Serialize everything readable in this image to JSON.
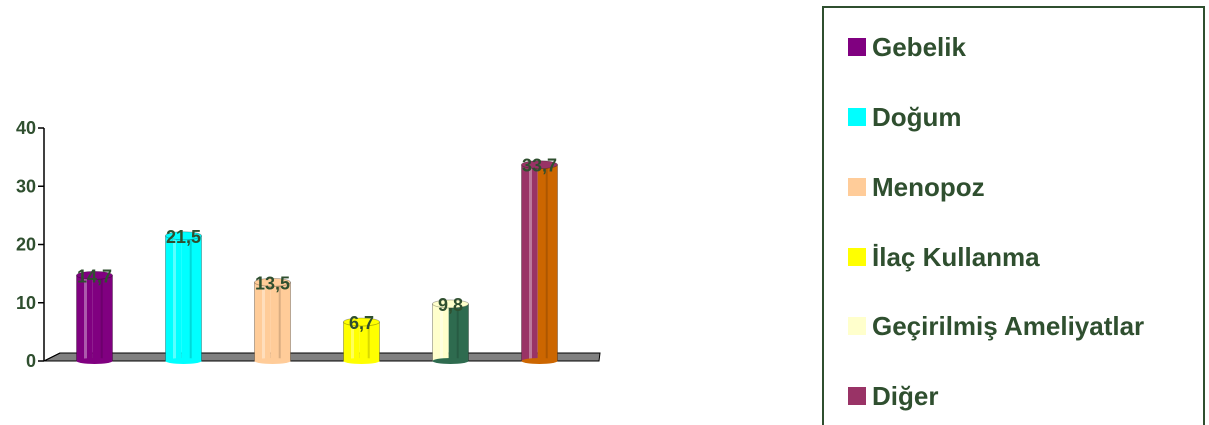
{
  "chart_data": {
    "type": "bar",
    "categories": [
      "Gebelik",
      "Doğum",
      "Menopoz",
      "İlaç Kullanma",
      "Geçirilmiş Ameliyatlar",
      "Diğer"
    ],
    "values": [
      14.7,
      21.5,
      13.5,
      6.7,
      9.8,
      33.7
    ],
    "data_labels": [
      "14,7",
      "21,5",
      "13,5",
      "6,7",
      "9,8",
      "33,7"
    ],
    "colors": [
      "#800080",
      "#00ffff",
      "#ffcc99",
      "#ffff00",
      "#ffffcc",
      "#993366"
    ],
    "side_colors": [
      "#800080",
      "#00ffff",
      "#ffcc99",
      "#ffff00",
      "#2e6b4f",
      "#cc6600"
    ],
    "yticks": [
      0,
      10,
      20,
      30,
      40
    ],
    "ylim": [
      0,
      40
    ],
    "legend_position": "right",
    "grid": false,
    "style": "3d-cylinder"
  }
}
